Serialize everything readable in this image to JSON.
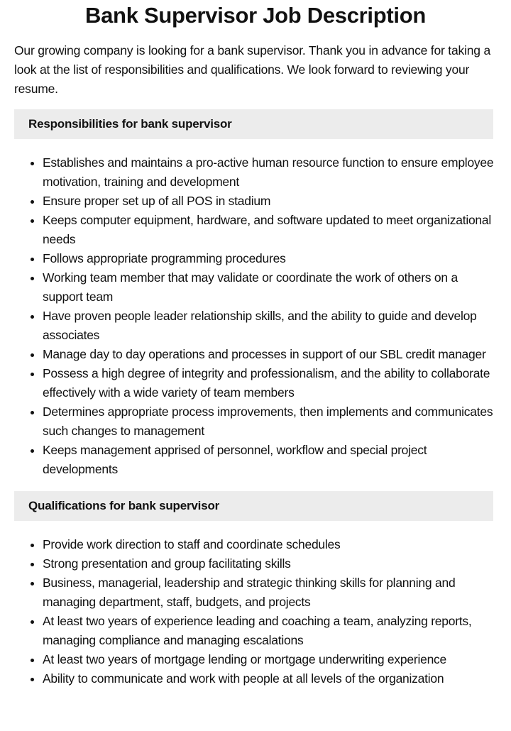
{
  "title": "Bank Supervisor Job Description",
  "intro": "Our growing company is looking for a bank supervisor. Thank you in advance for taking a look at the list of responsibilities and qualifications. We look forward to reviewing your resume.",
  "responsibilities": {
    "heading": "Responsibilities for bank supervisor",
    "items": [
      "Establishes and maintains a pro-active human resource function to ensure employee motivation, training and development",
      "Ensure proper set up of all POS in stadium",
      "Keeps computer equipment, hardware, and software updated to meet organizational needs",
      "Follows appropriate programming procedures",
      "Working team member that may validate or coordinate the work of others on a support team",
      "Have proven people leader relationship skills, and the ability to guide and develop associates",
      "Manage day to day operations and processes in support of our SBL credit manager",
      "Possess a high degree of integrity and professionalism, and the ability to collaborate effectively with a wide variety of team members",
      "Determines appropriate process improvements, then implements and communicates such changes to management",
      "Keeps management apprised of personnel, workflow and special project developments"
    ]
  },
  "qualifications": {
    "heading": "Qualifications for bank supervisor",
    "items": [
      "Provide work direction to staff and coordinate schedules",
      "Strong presentation and group facilitating skills",
      "Business, managerial, leadership and strategic thinking skills for planning and managing department, staff, budgets, and projects",
      "At least two years of experience leading and coaching a team, analyzing reports, managing compliance and managing escalations",
      "At least two years of mortgage lending or mortgage underwriting experience",
      "Ability to communicate and work with people at all levels of the organization"
    ]
  }
}
